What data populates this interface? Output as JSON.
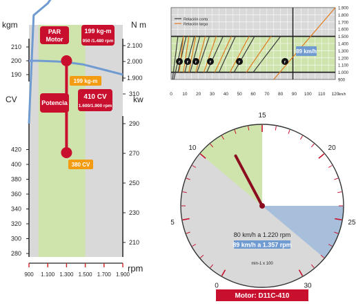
{
  "chart_data": [
    {
      "type": "line",
      "x_ticks": [
        "900",
        "1.100",
        "1.300",
        "1.500",
        "1.700",
        "1.900"
      ],
      "xlabel": "rpm",
      "torque_axis": {
        "left_label": "kgm",
        "left_ticks": [
          "190",
          "200",
          "210"
        ],
        "right_label": "N m",
        "right_ticks": [
          "1.900",
          "2.000",
          "2.100"
        ]
      },
      "power_axis": {
        "left_label": "CV",
        "left_ticks": [
          "280",
          "300",
          "320",
          "340",
          "360",
          "380",
          "400",
          "420"
        ],
        "right_label": "kw",
        "right_ticks": [
          "210",
          "230",
          "250",
          "270",
          "290",
          "310"
        ]
      },
      "green_band_rpm": [
        1000,
        1500
      ],
      "series": [
        {
          "name": "PAR Motor",
          "color": "#6f9bd1",
          "x": [
            900,
            1000,
            1200,
            1300,
            1480,
            1700,
            1900
          ],
          "y": [
            200,
            200,
            199.5,
            199,
            197.3,
            193.5,
            190
          ]
        },
        {
          "name": "Potencia",
          "color": "#6f9bd1",
          "x": [
            900,
            950,
            1100,
            1200,
            1300,
            1400,
            1480,
            1600,
            1900
          ],
          "y": [
            290,
            363,
            371,
            380,
            385,
            400,
            412,
            413,
            414
          ]
        }
      ],
      "labels": {
        "par_tag": [
          "PAR",
          "Motor"
        ],
        "torque_box": [
          "199 kg-m",
          "950 /1.480 rpm"
        ],
        "torque_callout": "199 kg-m",
        "power_tag": "Potencia",
        "power_box": [
          "410 CV",
          "1.600/1.900 rpm"
        ],
        "power_callout": "380 CV"
      }
    },
    {
      "type": "line",
      "x_ticks": [
        "0",
        "10",
        "20",
        "30",
        "40",
        "50",
        "60",
        "70",
        "80",
        "90",
        "100",
        "110",
        "120"
      ],
      "x_unit": "km/h",
      "y_ticks": [
        "900",
        "1.000",
        "1.100",
        "1.200",
        "1.300",
        "1.400",
        "1.500",
        "1.600",
        "1.700",
        "1.800",
        "1.900"
      ],
      "legend": [
        "Relación corta",
        "Relación larga"
      ],
      "marker_label": "89 km/h",
      "badges": [
        "r",
        "r",
        "r",
        "r",
        "r",
        "r"
      ],
      "green_band_rpm": [
        1000,
        1500
      ],
      "slow_lines": [
        [
          1,
          900,
          5,
          1500
        ],
        [
          2,
          900,
          9,
          1500
        ],
        [
          5,
          1000,
          11,
          1500
        ],
        [
          10,
          1000,
          17,
          1500
        ],
        [
          14,
          1000,
          21,
          1500
        ],
        [
          19,
          1000,
          28,
          1500
        ],
        [
          26,
          1000,
          38,
          1500
        ],
        [
          35,
          1000,
          47,
          1500
        ],
        [
          46,
          1000,
          61,
          1500
        ],
        [
          60,
          1000,
          80,
          1500
        ]
      ],
      "fast_lines": [
        [
          6,
          1000,
          9,
          1500
        ],
        [
          9,
          1000,
          13,
          1500
        ],
        [
          13,
          1000,
          18,
          1500
        ],
        [
          18,
          1000,
          25,
          1500
        ],
        [
          24,
          1000,
          33,
          1500
        ],
        [
          32,
          1000,
          44,
          1500
        ],
        [
          43,
          1000,
          57,
          1500
        ],
        [
          55,
          1000,
          73,
          1500
        ],
        [
          75,
          900,
          120,
          1900
        ]
      ]
    },
    {
      "type": "gauge",
      "min": 0,
      "max": 30,
      "ticks": [
        "0",
        "5",
        "10",
        "15",
        "20",
        "25",
        "30"
      ],
      "green_band": [
        10,
        15
      ],
      "blue_band": [
        24,
        28
      ],
      "needle_value": 12.2,
      "text_lines": [
        "80 km/h a 1.220 rpm",
        "89 km/h a 1.357 rpm"
      ],
      "unit": "min-1 x 100",
      "title": "Motor: D11C-410"
    }
  ]
}
